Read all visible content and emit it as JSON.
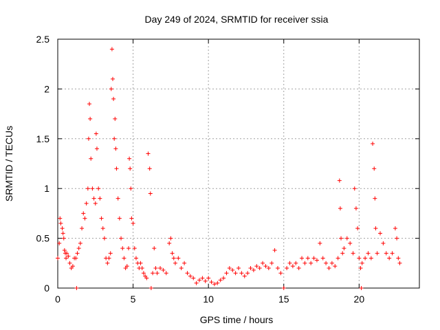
{
  "chart_data": {
    "type": "scatter",
    "title": "Day 249 of 2024, SRMTID for receiver ssia",
    "xlabel": "GPS time / hours",
    "ylabel": "SRMTID / TECUs",
    "xlim": [
      0,
      24
    ],
    "ylim": [
      0,
      2.5
    ],
    "x_ticks": [
      0,
      5,
      10,
      15,
      20
    ],
    "x_tick_labels": [
      "0",
      "5",
      "10",
      "15",
      "20"
    ],
    "y_ticks": [
      0,
      0.5,
      1,
      1.5,
      2,
      2.5
    ],
    "y_tick_labels": [
      "0",
      "0.5",
      "1",
      "1.5",
      "2",
      "2.5"
    ],
    "grid": true,
    "marker": "+",
    "color": "#ff0000",
    "series": [
      {
        "name": "SRMTID",
        "points": [
          [
            0.0,
            0.3
          ],
          [
            0.1,
            0.45
          ],
          [
            0.15,
            0.7
          ],
          [
            0.2,
            0.65
          ],
          [
            0.3,
            0.6
          ],
          [
            0.35,
            0.55
          ],
          [
            0.4,
            0.5
          ],
          [
            0.45,
            0.38
          ],
          [
            0.5,
            0.35
          ],
          [
            0.55,
            0.3
          ],
          [
            0.6,
            0.35
          ],
          [
            0.7,
            0.32
          ],
          [
            0.8,
            0.25
          ],
          [
            0.9,
            0.2
          ],
          [
            1.0,
            0.22
          ],
          [
            1.1,
            0.3
          ],
          [
            1.2,
            0.3
          ],
          [
            1.25,
            0.0
          ],
          [
            1.3,
            0.35
          ],
          [
            1.4,
            0.4
          ],
          [
            1.5,
            0.45
          ],
          [
            1.6,
            0.6
          ],
          [
            1.7,
            0.75
          ],
          [
            1.8,
            0.7
          ],
          [
            1.9,
            0.85
          ],
          [
            2.0,
            1.0
          ],
          [
            2.05,
            1.5
          ],
          [
            2.1,
            1.85
          ],
          [
            2.15,
            1.7
          ],
          [
            2.2,
            1.3
          ],
          [
            2.3,
            1.0
          ],
          [
            2.4,
            0.9
          ],
          [
            2.5,
            0.85
          ],
          [
            2.55,
            1.55
          ],
          [
            2.6,
            1.4
          ],
          [
            2.7,
            1.0
          ],
          [
            2.8,
            0.9
          ],
          [
            2.9,
            0.7
          ],
          [
            3.0,
            0.6
          ],
          [
            3.1,
            0.5
          ],
          [
            3.2,
            0.3
          ],
          [
            3.3,
            0.25
          ],
          [
            3.4,
            0.3
          ],
          [
            3.5,
            0.35
          ],
          [
            3.55,
            2.0
          ],
          [
            3.6,
            2.4
          ],
          [
            3.65,
            2.1
          ],
          [
            3.7,
            1.9
          ],
          [
            3.75,
            1.5
          ],
          [
            3.8,
            1.7
          ],
          [
            3.85,
            1.4
          ],
          [
            3.9,
            1.2
          ],
          [
            4.0,
            0.9
          ],
          [
            4.1,
            0.7
          ],
          [
            4.2,
            0.5
          ],
          [
            4.3,
            0.4
          ],
          [
            4.4,
            0.3
          ],
          [
            4.5,
            0.2
          ],
          [
            4.6,
            0.22
          ],
          [
            4.7,
            0.4
          ],
          [
            4.75,
            1.3
          ],
          [
            4.8,
            1.2
          ],
          [
            4.85,
            1.0
          ],
          [
            4.9,
            0.7
          ],
          [
            5.0,
            0.65
          ],
          [
            5.1,
            0.4
          ],
          [
            5.2,
            0.3
          ],
          [
            5.3,
            0.25
          ],
          [
            5.4,
            0.2
          ],
          [
            5.5,
            0.25
          ],
          [
            5.6,
            0.2
          ],
          [
            5.7,
            0.15
          ],
          [
            5.8,
            0.12
          ],
          [
            5.9,
            0.1
          ],
          [
            6.0,
            1.35
          ],
          [
            6.1,
            1.2
          ],
          [
            6.15,
            0.95
          ],
          [
            6.2,
            0.0
          ],
          [
            6.3,
            0.15
          ],
          [
            6.4,
            0.4
          ],
          [
            6.5,
            0.2
          ],
          [
            6.6,
            0.15
          ],
          [
            6.8,
            0.2
          ],
          [
            7.0,
            0.18
          ],
          [
            7.2,
            0.15
          ],
          [
            7.4,
            0.45
          ],
          [
            7.5,
            0.5
          ],
          [
            7.6,
            0.35
          ],
          [
            7.7,
            0.3
          ],
          [
            7.8,
            0.25
          ],
          [
            8.0,
            0.3
          ],
          [
            8.2,
            0.2
          ],
          [
            8.4,
            0.25
          ],
          [
            8.6,
            0.15
          ],
          [
            8.8,
            0.12
          ],
          [
            9.0,
            0.1
          ],
          [
            9.2,
            0.05
          ],
          [
            9.4,
            0.08
          ],
          [
            9.6,
            0.1
          ],
          [
            9.8,
            0.07
          ],
          [
            10.0,
            0.1
          ],
          [
            10.2,
            0.06
          ],
          [
            10.4,
            0.04
          ],
          [
            10.6,
            0.05
          ],
          [
            10.8,
            0.08
          ],
          [
            11.0,
            0.1
          ],
          [
            11.2,
            0.15
          ],
          [
            11.4,
            0.2
          ],
          [
            11.6,
            0.18
          ],
          [
            11.8,
            0.15
          ],
          [
            12.0,
            0.2
          ],
          [
            12.2,
            0.15
          ],
          [
            12.4,
            0.12
          ],
          [
            12.6,
            0.15
          ],
          [
            12.8,
            0.2
          ],
          [
            13.0,
            0.18
          ],
          [
            13.2,
            0.22
          ],
          [
            13.4,
            0.2
          ],
          [
            13.6,
            0.25
          ],
          [
            13.8,
            0.22
          ],
          [
            14.0,
            0.2
          ],
          [
            14.2,
            0.25
          ],
          [
            14.4,
            0.38
          ],
          [
            14.6,
            0.2
          ],
          [
            14.8,
            0.15
          ],
          [
            15.0,
            0.0
          ],
          [
            15.2,
            0.2
          ],
          [
            15.4,
            0.25
          ],
          [
            15.6,
            0.22
          ],
          [
            15.8,
            0.25
          ],
          [
            16.0,
            0.2
          ],
          [
            16.2,
            0.3
          ],
          [
            16.4,
            0.25
          ],
          [
            16.6,
            0.3
          ],
          [
            16.8,
            0.25
          ],
          [
            17.0,
            0.3
          ],
          [
            17.2,
            0.28
          ],
          [
            17.4,
            0.45
          ],
          [
            17.6,
            0.3
          ],
          [
            17.8,
            0.25
          ],
          [
            18.0,
            0.2
          ],
          [
            18.2,
            0.25
          ],
          [
            18.4,
            0.22
          ],
          [
            18.6,
            0.3
          ],
          [
            18.7,
            1.08
          ],
          [
            18.75,
            0.8
          ],
          [
            18.8,
            0.5
          ],
          [
            18.9,
            0.35
          ],
          [
            19.0,
            0.4
          ],
          [
            19.2,
            0.5
          ],
          [
            19.4,
            0.45
          ],
          [
            19.6,
            0.35
          ],
          [
            19.7,
            1.0
          ],
          [
            19.8,
            0.8
          ],
          [
            19.9,
            0.6
          ],
          [
            20.0,
            0.3
          ],
          [
            20.1,
            0.2
          ],
          [
            20.15,
            0.0
          ],
          [
            20.2,
            0.25
          ],
          [
            20.4,
            0.3
          ],
          [
            20.6,
            0.35
          ],
          [
            20.8,
            0.3
          ],
          [
            20.9,
            1.45
          ],
          [
            21.0,
            1.2
          ],
          [
            21.05,
            0.9
          ],
          [
            21.1,
            0.6
          ],
          [
            21.2,
            0.35
          ],
          [
            21.4,
            0.55
          ],
          [
            21.6,
            0.45
          ],
          [
            21.8,
            0.35
          ],
          [
            22.0,
            0.3
          ],
          [
            22.2,
            0.35
          ],
          [
            22.4,
            0.6
          ],
          [
            22.5,
            0.5
          ],
          [
            22.6,
            0.3
          ],
          [
            22.7,
            0.25
          ]
        ]
      }
    ]
  }
}
